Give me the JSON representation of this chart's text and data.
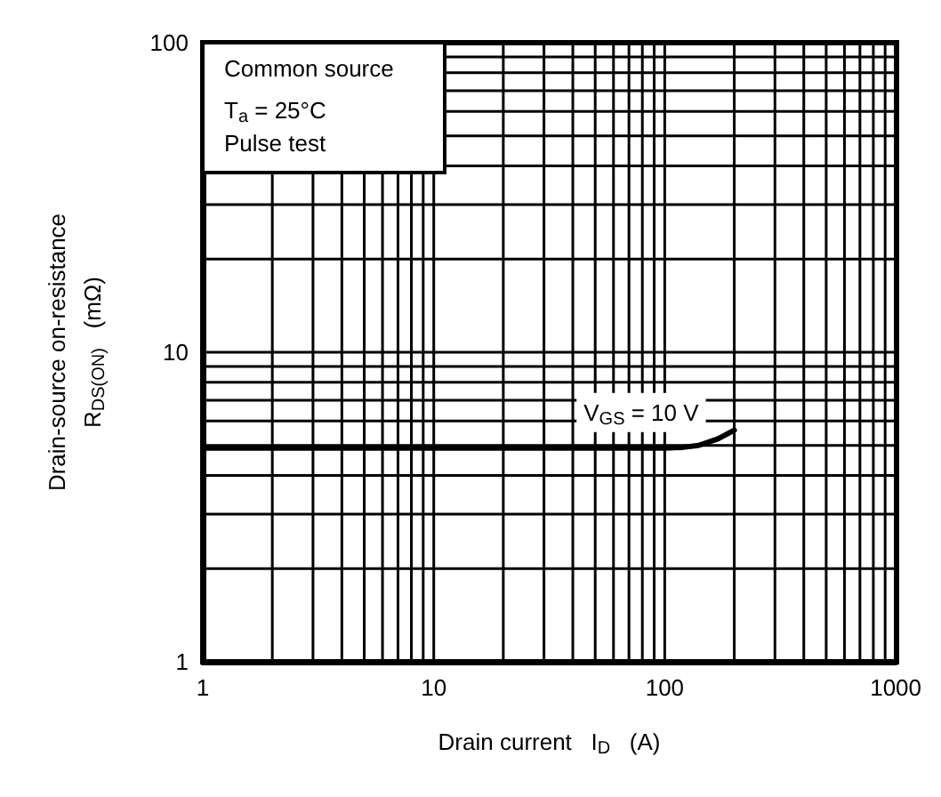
{
  "chart_data": {
    "type": "line",
    "xlabel": "Drain current   I$_{D}$   (A)",
    "ylabel": "Drain-source on-resistance\nR$_{DS(ON)}$   (mΩ)",
    "log": "xy",
    "grid": true,
    "legend": false,
    "marker": "none",
    "line_style": "solid",
    "xlim": [
      1,
      1000
    ],
    "ylim": [
      1,
      100
    ],
    "xticks": [
      1,
      {
        "value": 2,
        "label": null
      },
      {
        "value": 3,
        "label": null
      },
      {
        "value": 4,
        "label": null
      },
      {
        "value": 5,
        "label": null
      },
      {
        "value": 6,
        "label": null
      },
      {
        "value": 7,
        "label": null
      },
      {
        "value": 8,
        "label": null
      },
      {
        "value": 9,
        "label": null
      },
      10,
      {
        "value": 20,
        "label": null
      },
      {
        "value": 30,
        "label": null
      },
      {
        "value": 40,
        "label": null
      },
      {
        "value": 50,
        "label": null
      },
      {
        "value": 60,
        "label": null
      },
      {
        "value": 70,
        "label": null
      },
      {
        "value": 80,
        "label": null
      },
      {
        "value": 90,
        "label": null
      },
      100,
      {
        "value": 200,
        "label": null
      },
      {
        "value": 300,
        "label": null
      },
      {
        "value": 400,
        "label": null
      },
      {
        "value": 500,
        "label": null
      },
      {
        "value": 600,
        "label": null
      },
      {
        "value": 700,
        "label": null
      },
      {
        "value": 800,
        "label": null
      },
      {
        "value": 900,
        "label": null
      },
      1000
    ],
    "yticks": [
      1,
      {
        "value": 2,
        "label": null
      },
      {
        "value": 3,
        "label": null
      },
      {
        "value": 4,
        "label": null
      },
      {
        "value": 5,
        "label": null
      },
      {
        "value": 6,
        "label": null
      },
      {
        "value": 7,
        "label": null
      },
      {
        "value": 8,
        "label": null
      },
      {
        "value": 9,
        "label": null
      },
      10,
      {
        "value": 20,
        "label": null
      },
      {
        "value": 30,
        "label": null
      },
      {
        "value": 40,
        "label": null
      },
      {
        "value": 50,
        "label": null
      },
      {
        "value": 60,
        "label": null
      },
      {
        "value": 70,
        "label": null
      },
      {
        "value": 80,
        "label": null
      },
      {
        "value": 90,
        "label": null
      },
      100
    ],
    "series": [
      {
        "name": "V$_{GS}$ = 10 V",
        "color": "#000000",
        "x": [
          1,
          10,
          50,
          100,
          120,
          140,
          170,
          200
        ],
        "values": [
          4.9,
          4.9,
          4.9,
          4.9,
          4.93,
          5.0,
          5.25,
          5.6
        ]
      }
    ],
    "annotations": [
      "Common source",
      "T$_{a}$ = 25°C",
      "Pulse test"
    ]
  }
}
